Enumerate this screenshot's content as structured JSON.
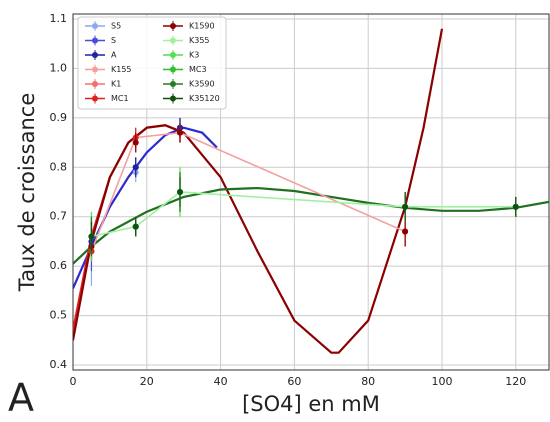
{
  "chart_data": {
    "type": "errorbar",
    "xlabel": "[SO4] en mM",
    "ylabel": "Taux de croissance",
    "annotation": "A",
    "xlim": [
      0,
      129
    ],
    "ylim": [
      0.39,
      1.11
    ],
    "xticks": [
      0,
      20,
      40,
      60,
      80,
      100,
      120
    ],
    "yticks": [
      0.4,
      0.5,
      0.6,
      0.7,
      0.8,
      0.9,
      {
        "value": 1,
        "label": "1.0"
      },
      1.1
    ],
    "grid": true,
    "legend": "upper left",
    "series": [
      {
        "name": "S5",
        "color": "#8fa8f0",
        "x": [
          5,
          17,
          29
        ],
        "values": [
          0.63,
          0.79,
          0.88
        ],
        "errors": [
          0.07,
          0.02,
          0.02
        ]
      },
      {
        "name": "S",
        "color": "#4a4ae0",
        "x": [
          5,
          17,
          29
        ],
        "values": [
          0.64,
          0.8,
          0.88
        ],
        "errors": [
          0.05,
          0.02,
          0.02
        ]
      },
      {
        "name": "A",
        "color": "#2020a0",
        "x": [
          5,
          17,
          29
        ],
        "values": [
          0.65,
          0.8,
          0.88
        ],
        "errors": [
          0.04,
          0.02,
          0.02
        ]
      },
      {
        "name": "K155",
        "color": "#f4a0a0",
        "x": [
          5,
          17,
          29,
          90
        ],
        "values": [
          0.63,
          0.86,
          0.87,
          0.67
        ],
        "errors": [
          0.02,
          0.02,
          0.02,
          0.03
        ],
        "connect": true
      },
      {
        "name": "K1",
        "color": "#f07070",
        "x": [
          5,
          17,
          29,
          90
        ],
        "values": [
          0.63,
          0.85,
          0.87,
          0.67
        ],
        "errors": [
          0.02,
          0.02,
          0.02,
          0.03
        ]
      },
      {
        "name": "MC1",
        "color": "#e02020",
        "x": [
          5,
          17,
          29,
          90
        ],
        "values": [
          0.63,
          0.86,
          0.87,
          0.67
        ],
        "errors": [
          0.02,
          0.02,
          0.02,
          0.03
        ]
      },
      {
        "name": "K1590",
        "color": "#8b0000",
        "x": [
          5,
          17,
          29,
          90
        ],
        "values": [
          0.64,
          0.85,
          0.87,
          0.67
        ],
        "errors": [
          0.02,
          0.02,
          0.02,
          0.03
        ]
      },
      {
        "name": "K355",
        "color": "#a0f0a0",
        "x": [
          5,
          17,
          29,
          90,
          120
        ],
        "values": [
          0.66,
          0.68,
          0.75,
          0.72,
          0.72
        ],
        "errors": [
          0.05,
          0.02,
          0.05,
          0.03,
          0.02
        ],
        "connect": true
      },
      {
        "name": "K3",
        "color": "#50e050",
        "x": [
          5,
          17,
          29,
          90,
          120
        ],
        "values": [
          0.66,
          0.68,
          0.75,
          0.72,
          0.72
        ],
        "errors": [
          0.05,
          0.02,
          0.05,
          0.03,
          0.02
        ]
      },
      {
        "name": "MC3",
        "color": "#30c030",
        "x": [
          5,
          17,
          29,
          90,
          120
        ],
        "values": [
          0.66,
          0.68,
          0.75,
          0.72,
          0.72
        ],
        "errors": [
          0.04,
          0.02,
          0.04,
          0.03,
          0.02
        ]
      },
      {
        "name": "K3590",
        "color": "#208020",
        "x": [
          5,
          17,
          29,
          90,
          120
        ],
        "values": [
          0.66,
          0.68,
          0.75,
          0.72,
          0.72
        ],
        "errors": [
          0.04,
          0.02,
          0.04,
          0.03,
          0.02
        ]
      },
      {
        "name": "K35120",
        "color": "#105010",
        "x": [
          5,
          17,
          29,
          90,
          120
        ],
        "values": [
          0.66,
          0.68,
          0.75,
          0.72,
          0.72
        ],
        "errors": [
          0.03,
          0.02,
          0.03,
          0.03,
          0.02
        ]
      }
    ],
    "fits": [
      {
        "color": "#2a2ad0",
        "x": [
          0,
          5,
          10,
          15,
          20,
          25,
          30,
          35,
          39
        ],
        "values": [
          0.555,
          0.64,
          0.72,
          0.78,
          0.83,
          0.865,
          0.88,
          0.87,
          0.84
        ]
      },
      {
        "color": "#e02020",
        "x": [
          0,
          5,
          10,
          15,
          20,
          25,
          30
        ],
        "values": [
          0.47,
          0.66,
          0.78,
          0.85,
          0.88,
          0.885,
          0.87
        ]
      },
      {
        "color": "#8b0000",
        "x": [
          0,
          5,
          10,
          15,
          20,
          25,
          30,
          40,
          50,
          60,
          70,
          72,
          80,
          90,
          95,
          100
        ],
        "values": [
          0.45,
          0.65,
          0.78,
          0.85,
          0.88,
          0.885,
          0.87,
          0.78,
          0.63,
          0.49,
          0.425,
          0.425,
          0.49,
          0.72,
          0.88,
          1.08
        ]
      },
      {
        "color": "#207020",
        "x": [
          0,
          5,
          10,
          20,
          30,
          40,
          50,
          60,
          70,
          80,
          90,
          100,
          110,
          120,
          129
        ],
        "values": [
          0.605,
          0.64,
          0.67,
          0.71,
          0.74,
          0.755,
          0.758,
          0.752,
          0.74,
          0.728,
          0.718,
          0.712,
          0.712,
          0.718,
          0.73
        ]
      }
    ]
  }
}
